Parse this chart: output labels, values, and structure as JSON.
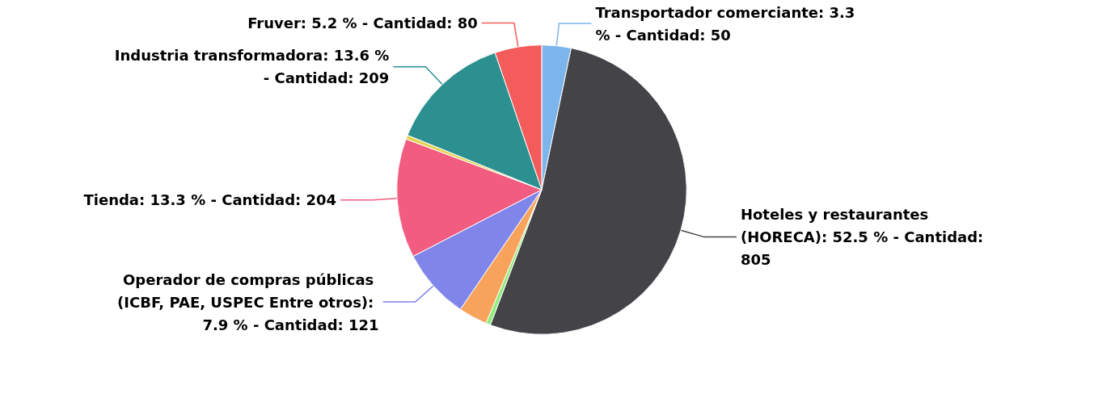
{
  "chart_data": {
    "type": "pie",
    "categories": [
      "Transportador comerciante",
      "Hoteles y restaurantes (HORECA)",
      null,
      null,
      "Operador de compras públicas (ICBF, PAE, USPEC Entre otros)",
      "Tienda",
      null,
      "Industria transformadora",
      "Fruver"
    ],
    "values": [
      50,
      805,
      8,
      49,
      121,
      204,
      7,
      209,
      80
    ],
    "value_labels": [
      ": 3.3 % - Cantidad: 50",
      ": 52.5 % - Cantidad: 805",
      null,
      null,
      ": 7.9 % - Cantidad: 121",
      ": 13.3 % - Cantidad: 204",
      null,
      ": 13.6 % - Cantidad: 209",
      ": 5.2 % - Cantidad: 80"
    ],
    "colors": [
      "#7cb5ec",
      "#434348",
      "#90ed7d",
      "#f7a35c",
      "#8085e9",
      "#f15c80",
      "#e4d354",
      "#2b908f",
      "#f45b5b"
    ],
    "legend": false
  }
}
